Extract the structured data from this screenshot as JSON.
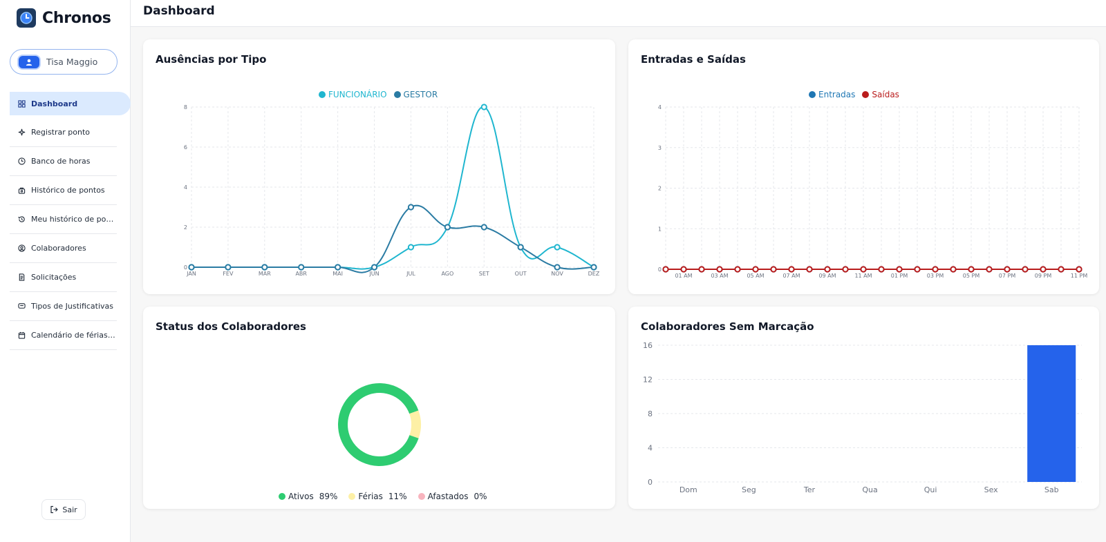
{
  "app": {
    "name": "Chronos"
  },
  "user": {
    "name": "Tisa Maggio"
  },
  "sidebar": {
    "items": [
      {
        "label": "Dashboard",
        "icon": "grid-icon",
        "active": true
      },
      {
        "label": "Registrar ponto",
        "icon": "sparkle-icon"
      },
      {
        "label": "Banco de horas",
        "icon": "clock-icon"
      },
      {
        "label": "Histórico de pontos",
        "icon": "history-bag-icon"
      },
      {
        "label": "Meu histórico de pontos",
        "icon": "history-icon"
      },
      {
        "label": "Colaboradores",
        "icon": "user-circle-icon"
      },
      {
        "label": "Solicitações",
        "icon": "document-icon"
      },
      {
        "label": "Tipos de Justificativas",
        "icon": "message-icon"
      },
      {
        "label": "Calendário de férias e af...",
        "icon": "calendar-icon"
      }
    ],
    "logout_label": "Sair"
  },
  "header": {
    "title": "Dashboard"
  },
  "colors": {
    "funcionario": "#1fb6cf",
    "gestor": "#2a7ba3",
    "entradas": "#1f77b4",
    "saidas": "#b91c1c",
    "ativos": "#2ecc71",
    "ferias": "#fdf0a6",
    "afastados": "#f8b4be",
    "bar": "#2563eb"
  },
  "cards": {
    "absences": {
      "title": "Ausências por Tipo"
    },
    "entries": {
      "title": "Entradas e Saídas"
    },
    "status": {
      "title": "Status dos Colaboradores"
    },
    "unmarked": {
      "title": "Colaboradores Sem Marcação"
    }
  },
  "chart_data": [
    {
      "id": "absences",
      "type": "line",
      "categories": [
        "JAN",
        "FEV",
        "MAR",
        "ABR",
        "MAI",
        "JUN",
        "JUL",
        "AGO",
        "SET",
        "OUT",
        "NOV",
        "DEZ"
      ],
      "series": [
        {
          "name": "FUNCIONÁRIO",
          "values": [
            0,
            0,
            0,
            0,
            0,
            0,
            1,
            2,
            8,
            1,
            1,
            0
          ]
        },
        {
          "name": "GESTOR",
          "values": [
            0,
            0,
            0,
            0,
            0,
            0,
            3,
            2,
            2,
            1,
            0,
            0
          ]
        }
      ],
      "ylim": [
        0,
        8
      ],
      "yticks": [
        0,
        2,
        4,
        6,
        8
      ],
      "grid": true,
      "legend": "top-center"
    },
    {
      "id": "entries",
      "type": "line",
      "categories": [
        "",
        "01 AM",
        "",
        "03 AM",
        "",
        "05 AM",
        "",
        "07 AM",
        "",
        "09 AM",
        "",
        "11 AM",
        "",
        "01 PM",
        "",
        "03 PM",
        "",
        "05 PM",
        "",
        "07 PM",
        "",
        "09 PM",
        "",
        "11 PM"
      ],
      "series": [
        {
          "name": "Entradas",
          "values": [
            0,
            0,
            0,
            0,
            0,
            0,
            0,
            0,
            0,
            0,
            0,
            0,
            0,
            0,
            0,
            0,
            0,
            0,
            0,
            0,
            0,
            0,
            0,
            0
          ]
        },
        {
          "name": "Saídas",
          "values": [
            0,
            0,
            0,
            0,
            0,
            0,
            0,
            0,
            0,
            0,
            0,
            0,
            0,
            0,
            0,
            0,
            0,
            0,
            0,
            0,
            0,
            0,
            0,
            0
          ]
        }
      ],
      "ylim": [
        0,
        4
      ],
      "yticks": [
        0,
        1,
        2,
        3,
        4
      ],
      "grid": true,
      "legend": "top-center"
    },
    {
      "id": "status",
      "type": "pie",
      "labels": [
        "Ativos",
        "Férias",
        "Afastados"
      ],
      "values": [
        89,
        11,
        0
      ],
      "value_labels": [
        "89%",
        "11%",
        "0%"
      ],
      "legend": "bottom-center"
    },
    {
      "id": "unmarked",
      "type": "bar",
      "categories": [
        "Dom",
        "Seg",
        "Ter",
        "Qua",
        "Qui",
        "Sex",
        "Sab"
      ],
      "values": [
        0,
        0,
        0,
        0,
        0,
        0,
        16
      ],
      "ylim": [
        0,
        16
      ],
      "yticks": [
        0,
        4,
        8,
        12,
        16
      ],
      "grid": true
    }
  ]
}
